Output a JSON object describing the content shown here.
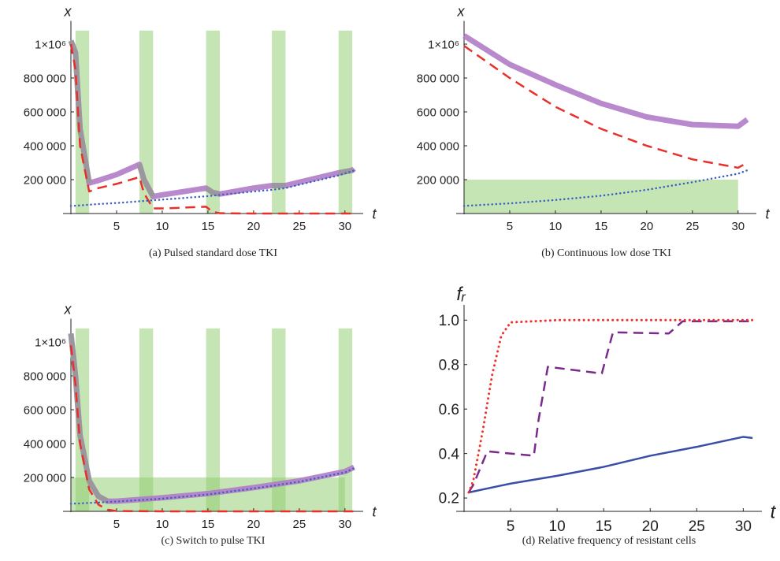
{
  "chart_data": [
    {
      "type": "line",
      "caption": "(a)  Pulsed standard dose TKI",
      "x_label": "t",
      "y_label": "x",
      "xlim": [
        0,
        32
      ],
      "ylim": [
        0,
        1100000
      ],
      "xticks": [
        5,
        10,
        15,
        20,
        25,
        30
      ],
      "yticks": [
        {
          "value": 200000,
          "label": "200 000"
        },
        {
          "value": 400000,
          "label": "400 000"
        },
        {
          "value": 600000,
          "label": "600 000"
        },
        {
          "value": 800000,
          "label": "800 000"
        },
        {
          "value": 1000000,
          "label": "1×10⁶"
        }
      ],
      "shading_color": "#8dcb6c",
      "shading": [
        {
          "x": [
            0.5,
            2
          ],
          "y": [
            0,
            1080000
          ]
        },
        {
          "x": [
            7.5,
            9
          ],
          "y": [
            0,
            1080000
          ]
        },
        {
          "x": [
            14.8,
            16.3
          ],
          "y": [
            0,
            1080000
          ]
        },
        {
          "x": [
            22,
            23.5
          ],
          "y": [
            0,
            1080000
          ]
        },
        {
          "x": [
            29.3,
            30.8
          ],
          "y": [
            0,
            1080000
          ]
        }
      ],
      "x": [
        0,
        0.5,
        1,
        2,
        3,
        5,
        7.5,
        8,
        9,
        10,
        14.8,
        15.5,
        16.3,
        20,
        22,
        23.5,
        25,
        29.3,
        30.8,
        31
      ],
      "series": [
        {
          "color": "#b07cc8",
          "width": 7,
          "style": "solid",
          "values": [
            1020000,
            950000,
            500000,
            180000,
            195000,
            230000,
            290000,
            200000,
            100000,
            110000,
            150000,
            125000,
            115000,
            150000,
            165000,
            165000,
            185000,
            240000,
            255000,
            265000
          ]
        },
        {
          "color": "#999999",
          "width": 7,
          "style": "solid",
          "values": [
            1020000,
            950000,
            500000,
            180000,
            null,
            null,
            290000,
            200000,
            100000,
            null,
            150000,
            125000,
            115000,
            null,
            165000,
            165000,
            null,
            240000,
            255000,
            null
          ]
        },
        {
          "color": "#e8302a",
          "width": 2.5,
          "style": "dashed",
          "values": [
            1000000,
            850000,
            400000,
            130000,
            150000,
            175000,
            215000,
            120000,
            30000,
            30000,
            40000,
            10000,
            2000,
            0,
            0,
            0,
            0,
            0,
            0,
            0
          ]
        },
        {
          "color": "#3d5fc4",
          "width": 2.5,
          "style": "dotted",
          "values": [
            45000,
            46000,
            48000,
            52000,
            56000,
            62000,
            72000,
            74000,
            78000,
            82000,
            102000,
            105000,
            110000,
            130000,
            140000,
            150000,
            170000,
            225000,
            250000,
            255000
          ]
        }
      ]
    },
    {
      "type": "line",
      "caption": "(b)  Continuous low dose TKI",
      "x_label": "t",
      "y_label": "x",
      "xlim": [
        0,
        32
      ],
      "ylim": [
        0,
        1100000
      ],
      "xticks": [
        5,
        10,
        15,
        20,
        25,
        30
      ],
      "yticks": [
        {
          "value": 200000,
          "label": "200 000"
        },
        {
          "value": 400000,
          "label": "400 000"
        },
        {
          "value": 600000,
          "label": "600 000"
        },
        {
          "value": 800000,
          "label": "800 000"
        },
        {
          "value": 1000000,
          "label": "1×10⁶"
        }
      ],
      "shading_color": "#8dcb6c",
      "shading": [
        {
          "x": [
            0,
            30
          ],
          "y": [
            0,
            200000
          ]
        }
      ],
      "x": [
        0,
        5,
        10,
        15,
        20,
        25,
        30,
        31
      ],
      "series": [
        {
          "color": "#b07cc8",
          "width": 7,
          "style": "solid",
          "values": [
            1050000,
            880000,
            760000,
            650000,
            570000,
            525000,
            515000,
            555000
          ]
        },
        {
          "color": "#e8302a",
          "width": 2.5,
          "style": "dashed",
          "values": [
            990000,
            800000,
            630000,
            500000,
            400000,
            320000,
            270000,
            300000
          ]
        },
        {
          "color": "#3d5fc4",
          "width": 2.5,
          "style": "dotted",
          "values": [
            45000,
            60000,
            80000,
            105000,
            140000,
            185000,
            235000,
            255000
          ]
        }
      ]
    },
    {
      "type": "line",
      "caption": "(c)  Switch to pulse TKI",
      "x_label": "t",
      "y_label": "x",
      "xlim": [
        0,
        32
      ],
      "ylim": [
        0,
        1100000
      ],
      "xticks": [
        5,
        10,
        15,
        20,
        25,
        30
      ],
      "yticks": [
        {
          "value": 200000,
          "label": "200 000"
        },
        {
          "value": 400000,
          "label": "400 000"
        },
        {
          "value": 600000,
          "label": "600 000"
        },
        {
          "value": 800000,
          "label": "800 000"
        },
        {
          "value": 1000000,
          "label": "1×10⁶"
        }
      ],
      "shading_color": "#8dcb6c",
      "shading": [
        {
          "x": [
            0,
            30
          ],
          "y": [
            0,
            200000
          ]
        },
        {
          "x": [
            0.5,
            2
          ],
          "y": [
            0,
            1080000
          ]
        },
        {
          "x": [
            7.5,
            9
          ],
          "y": [
            0,
            1080000
          ]
        },
        {
          "x": [
            14.8,
            16.3
          ],
          "y": [
            0,
            1080000
          ]
        },
        {
          "x": [
            22,
            23.5
          ],
          "y": [
            0,
            1080000
          ]
        },
        {
          "x": [
            29.3,
            30.8
          ],
          "y": [
            0,
            1080000
          ]
        }
      ],
      "x": [
        0,
        0.5,
        1,
        2,
        3,
        4,
        5,
        10,
        15,
        20,
        25,
        30,
        31
      ],
      "series": [
        {
          "color": "#b07cc8",
          "width": 7,
          "style": "solid",
          "values": [
            1050000,
            800000,
            450000,
            180000,
            90000,
            60000,
            60000,
            80000,
            105000,
            140000,
            180000,
            235000,
            260000
          ]
        },
        {
          "color": "#999999",
          "width": 7,
          "style": "solid",
          "values": [
            1050000,
            800000,
            450000,
            180000,
            90000,
            60000,
            null,
            null,
            null,
            null,
            null,
            null,
            null
          ]
        },
        {
          "color": "#e8302a",
          "width": 2.5,
          "style": "dashed",
          "values": [
            980000,
            750000,
            400000,
            130000,
            40000,
            10000,
            2000,
            0,
            0,
            0,
            0,
            0,
            0
          ]
        },
        {
          "color": "#3d5fc4",
          "width": 2.5,
          "style": "dotted",
          "values": [
            45000,
            46000,
            47000,
            50000,
            52000,
            55000,
            58000,
            75000,
            100000,
            135000,
            175000,
            230000,
            255000
          ]
        }
      ]
    },
    {
      "type": "line",
      "caption": "(d)  Relative frequency of resistant cells",
      "x_label": "t",
      "y_label": "fᵣ",
      "xlim": [
        0,
        32
      ],
      "ylim": [
        0.14,
        1.04
      ],
      "xticks": [
        5,
        10,
        15,
        20,
        25,
        30
      ],
      "yticks": [
        0.2,
        0.4,
        0.6,
        0.8,
        {
          "value": 1,
          "label": "1.0"
        }
      ],
      "series": [
        {
          "color": "#3b4ea6",
          "width": 2.5,
          "style": "solid",
          "x": [
            0.5,
            5,
            10,
            15,
            20,
            25,
            30,
            31
          ],
          "values": [
            0.225,
            0.265,
            0.3,
            0.34,
            0.39,
            0.43,
            0.475,
            0.47
          ]
        },
        {
          "color": "#7a2a8c",
          "width": 2.5,
          "style": "dashed",
          "x": [
            0.5,
            1,
            2,
            2.5,
            5,
            7.5,
            8,
            9,
            14.8,
            16,
            22,
            23.5,
            31
          ],
          "values": [
            0.225,
            0.26,
            0.36,
            0.41,
            0.4,
            0.39,
            0.55,
            0.79,
            0.76,
            0.945,
            0.94,
            0.995,
            0.995
          ]
        },
        {
          "color": "#f0302a",
          "width": 3,
          "style": "dotted",
          "x": [
            0.5,
            1,
            2,
            3,
            4,
            5,
            10,
            31
          ],
          "values": [
            0.225,
            0.28,
            0.5,
            0.75,
            0.93,
            0.99,
            1,
            1
          ]
        }
      ]
    }
  ]
}
